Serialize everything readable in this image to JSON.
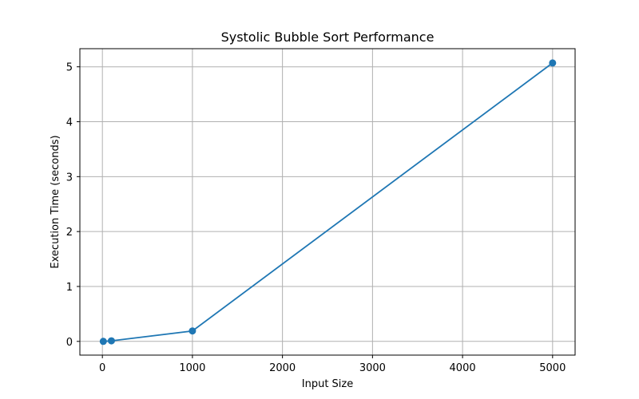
{
  "chart_data": {
    "type": "line",
    "title": "Systolic Bubble Sort Performance",
    "xlabel": "Input Size",
    "ylabel": "Execution Time (seconds)",
    "xlim": [
      -250,
      5250
    ],
    "ylim": [
      -0.25,
      5.33
    ],
    "xticks": [
      0,
      1000,
      2000,
      3000,
      4000,
      5000
    ],
    "yticks": [
      0,
      1,
      2,
      3,
      4,
      5
    ],
    "grid": true,
    "series": [
      {
        "x": [
          10,
          100,
          1000,
          5000
        ],
        "y": [
          0.0,
          0.01,
          0.19,
          5.07
        ],
        "color": "#1f77b4",
        "marker": "circle"
      }
    ]
  }
}
